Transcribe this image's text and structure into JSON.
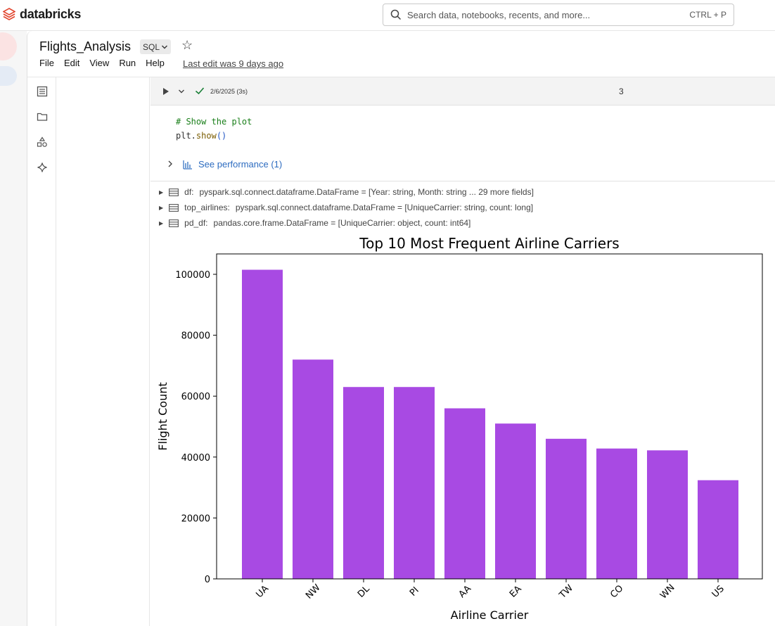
{
  "app": {
    "brand": "databricks",
    "search_placeholder": "Search data, notebooks, recents, and more...",
    "search_shortcut": "CTRL + P"
  },
  "notebook": {
    "title": "Flights_Analysis",
    "language": "SQL",
    "menu": [
      "File",
      "Edit",
      "View",
      "Run",
      "Help"
    ],
    "last_edit": "Last edit was 9 days ago"
  },
  "cell": {
    "run_info": "2/6/2025 (3s)",
    "cell_number": "3",
    "code_comment": "# Show the plot",
    "code_obj": "plt.",
    "code_fn": "show",
    "code_parens": "()",
    "performance_label": "See performance (1)"
  },
  "variables": [
    {
      "name": "df:",
      "value": "pyspark.sql.connect.dataframe.DataFrame = [Year: string, Month: string ... 29 more fields]"
    },
    {
      "name": "top_airlines:",
      "value": "pyspark.sql.connect.dataframe.DataFrame = [UniqueCarrier: string, count: long]"
    },
    {
      "name": "pd_df:",
      "value": "pandas.core.frame.DataFrame = [UniqueCarrier: object, count: int64]"
    }
  ],
  "colors": {
    "bar": "#a84ae3",
    "link": "#2d6cc0",
    "brand": "#e2462f"
  },
  "chart_data": {
    "type": "bar",
    "title": "Top 10 Most Frequent Airline Carriers",
    "xlabel": "Airline Carrier",
    "ylabel": "Flight Count",
    "categories": [
      "UA",
      "NW",
      "DL",
      "PI",
      "AA",
      "EA",
      "TW",
      "CO",
      "WN",
      "US"
    ],
    "values": [
      101500,
      72000,
      63000,
      63000,
      56000,
      51000,
      46000,
      42800,
      42200,
      32400
    ],
    "ylim": [
      0,
      106700
    ],
    "yticks": [
      0,
      20000,
      40000,
      60000,
      80000,
      100000
    ],
    "grid": false,
    "legend": "none"
  }
}
